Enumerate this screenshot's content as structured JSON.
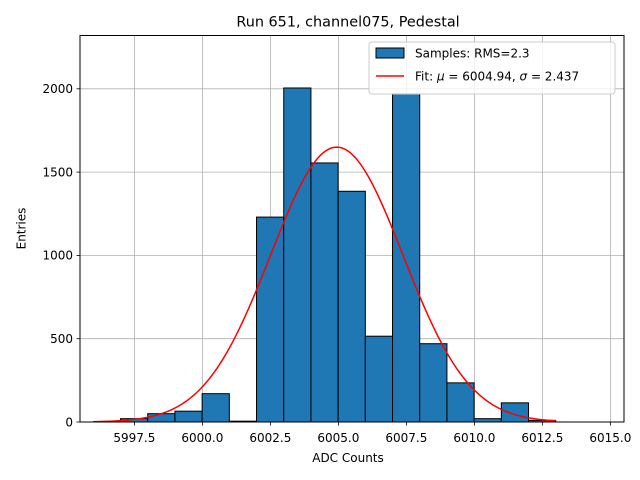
{
  "chart_data": {
    "type": "bar",
    "title": "Run 651, channel075, Pedestal",
    "xlabel": "ADC Counts",
    "ylabel": "Entries",
    "xlim": [
      5995.5,
      6015.5
    ],
    "ylim": [
      0,
      2320
    ],
    "grid": true,
    "legend_position": "top-right",
    "x_ticks": [
      5997.5,
      6000.0,
      6002.5,
      6005.0,
      6007.5,
      6010.0,
      6012.5,
      6015.0
    ],
    "x_tick_labels": [
      "5997.5",
      "6000.0",
      "6002.5",
      "6005.0",
      "6007.5",
      "6010.0",
      "6012.5",
      "6015.0"
    ],
    "y_ticks": [
      0,
      500,
      1000,
      1500,
      2000
    ],
    "y_tick_labels": [
      "0",
      "500",
      "1000",
      "1500",
      "2000"
    ],
    "histogram": {
      "name": "Samples: RMS=2.3",
      "color": "#1f77b4",
      "edgecolor": "#000000",
      "bin_edges": [
        5996.99,
        5997.99,
        5998.99,
        5999.99,
        6000.99,
        6001.99,
        6002.99,
        6003.99,
        6004.99,
        6005.99,
        6006.99,
        6007.99,
        6008.99,
        6009.99,
        6010.99,
        6011.99,
        6012.99
      ],
      "counts": [
        20,
        50,
        65,
        170,
        5,
        1230,
        2005,
        1555,
        1385,
        515,
        1970,
        470,
        235,
        20,
        115,
        10
      ]
    },
    "fit": {
      "name": "Fit: μ = 6004.94, σ = 2.437",
      "color": "#ff0000",
      "mu": 6004.94,
      "sigma": 2.437,
      "amplitude": 1650,
      "x_range": [
        5995.99,
        6012.99
      ]
    },
    "legend": {
      "hist_label": "Samples: RMS=2.3",
      "fit_label_prefix": "Fit: ",
      "fit_mu_symbol": "μ",
      "fit_mu_rest": " = 6004.94, ",
      "fit_sigma_symbol": "σ",
      "fit_sigma_rest": " = 2.437"
    }
  }
}
